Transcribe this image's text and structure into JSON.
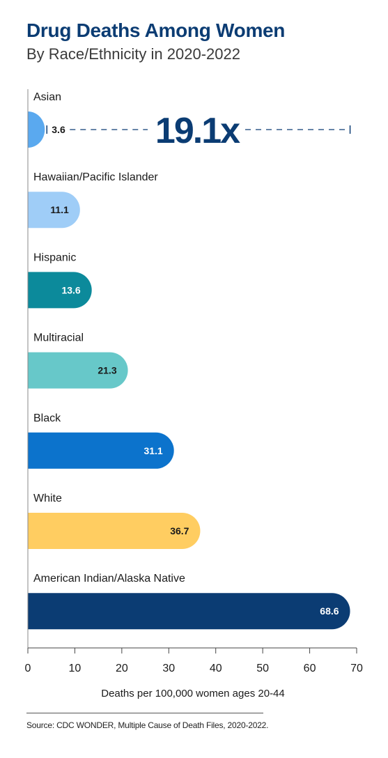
{
  "title": "Drug Deaths Among Women",
  "subtitle": "By Race/Ethnicity in 2020-2022",
  "source": "Source: CDC WONDER, Multiple Cause of Death Files, 2020-2022.",
  "annotation": {
    "text": "19.1x",
    "color": "#0b3c73"
  },
  "chart_data": {
    "type": "bar",
    "orientation": "horizontal",
    "title": "Drug Deaths Among Women",
    "subtitle": "By Race/Ethnicity in 2020-2022",
    "xlabel": "Deaths per 100,000 women ages 20-44",
    "ylabel": "",
    "xlim": [
      0,
      70
    ],
    "ticks": [
      0,
      10,
      20,
      30,
      40,
      50,
      60,
      70
    ],
    "grid": false,
    "categories": [
      "Asian",
      "Hawaiian/Pacific Islander",
      "Hispanic",
      "Multiracial",
      "Black",
      "White",
      "American Indian/Alaska Native"
    ],
    "values": [
      3.6,
      11.1,
      13.6,
      21.3,
      31.1,
      36.7,
      68.6
    ],
    "value_labels": [
      "3.6",
      "11.1",
      "13.6",
      "21.3",
      "31.1",
      "36.7",
      "68.6"
    ],
    "colors": [
      "#5aa9ef",
      "#9fcdf7",
      "#0c8a9b",
      "#67c8c9",
      "#0c73cc",
      "#ffcd61",
      "#0b3c73"
    ],
    "label_colors": [
      "#1a1a1a",
      "#1a1a1a",
      "#ffffff",
      "#1a1a1a",
      "#ffffff",
      "#1a1a1a",
      "#ffffff"
    ],
    "annotations": [
      "19.1x"
    ]
  }
}
